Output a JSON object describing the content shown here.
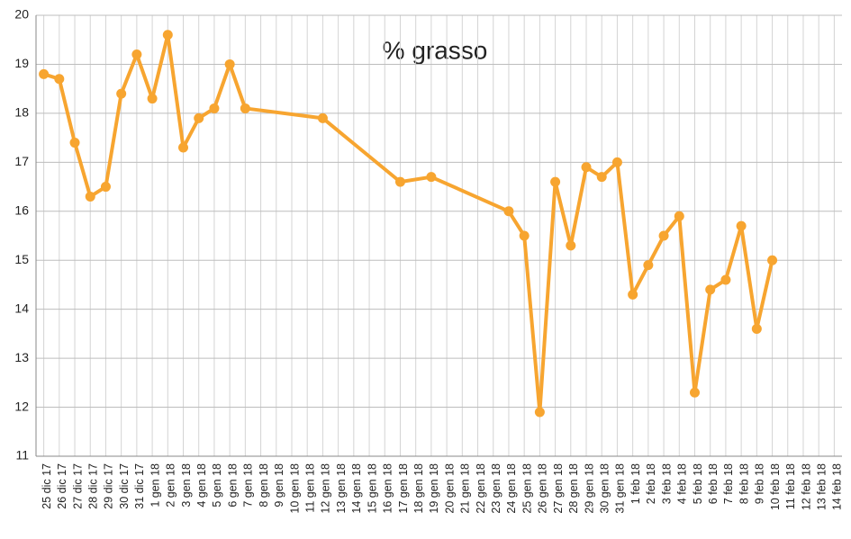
{
  "chart_data": {
    "type": "line",
    "title": "% grasso",
    "categories": [
      "25 dic 17",
      "26 dic 17",
      "27 dic 17",
      "28 dic 17",
      "29 dic 17",
      "30 dic 17",
      "31 dic 17",
      "1 gen 18",
      "2 gen 18",
      "3 gen 18",
      "4 gen 18",
      "5 gen 18",
      "6 gen 18",
      "7 gen 18",
      "8 gen 18",
      "9 gen 18",
      "10 gen 18",
      "11 gen 18",
      "12 gen 18",
      "13 gen 18",
      "14 gen 18",
      "15 gen 18",
      "16 gen 18",
      "17 gen 18",
      "18 gen 18",
      "19 gen 18",
      "20 gen 18",
      "21 gen 18",
      "22 gen 18",
      "23 gen 18",
      "24 gen 18",
      "25 gen 18",
      "26 gen 18",
      "27 gen 18",
      "28 gen 18",
      "29 gen 18",
      "30 gen 18",
      "31 gen 18",
      "1 feb 18",
      "2 feb 18",
      "3 feb 18",
      "4 feb 18",
      "5 feb 18",
      "6 feb 18",
      "7 feb 18",
      "8 feb 18",
      "9 feb 18",
      "10 feb 18",
      "11 feb 18",
      "12 feb 18",
      "13 feb 18",
      "14 feb 18"
    ],
    "values": [
      18.8,
      18.7,
      17.4,
      16.3,
      16.5,
      18.4,
      19.2,
      18.3,
      19.6,
      17.3,
      17.9,
      18.1,
      19.0,
      18.1,
      null,
      null,
      null,
      null,
      17.9,
      null,
      null,
      null,
      null,
      16.6,
      null,
      16.7,
      null,
      null,
      null,
      null,
      16.0,
      15.5,
      11.9,
      16.6,
      15.3,
      16.9,
      16.7,
      17.0,
      14.3,
      14.9,
      15.5,
      15.9,
      12.3,
      14.4,
      14.6,
      15.7,
      13.6,
      15.0,
      null,
      null,
      null,
      null
    ],
    "color": "#f7a530",
    "span_gaps": true,
    "ylim": [
      11,
      20
    ],
    "yticks": [
      11,
      12,
      13,
      14,
      15,
      16,
      17,
      18,
      19,
      20
    ],
    "grid": true
  }
}
